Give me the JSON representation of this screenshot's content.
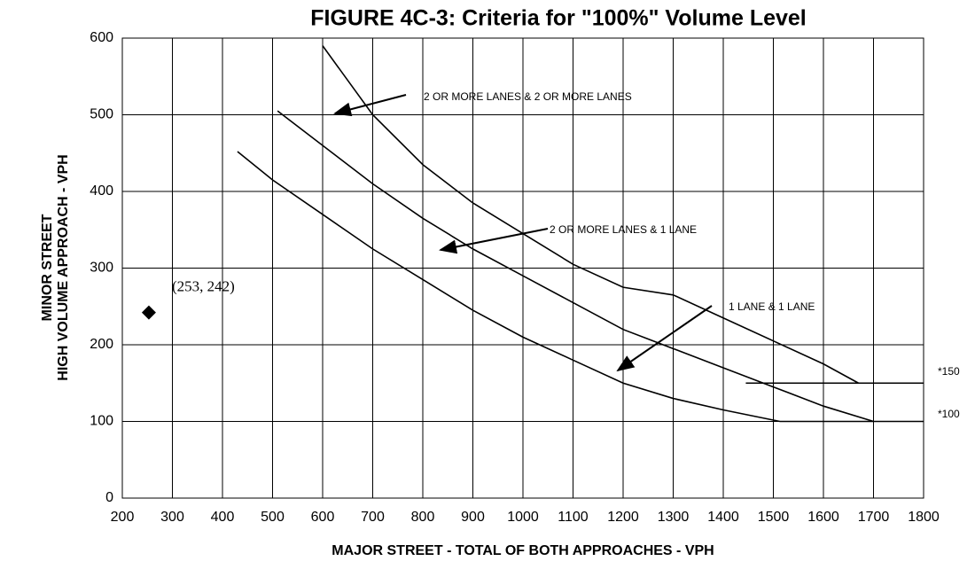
{
  "chart_data": {
    "type": "line",
    "title": "FIGURE 4C-3:  Criteria for \"100%\" Volume Level",
    "ylabel": [
      "MINOR STREET",
      "HIGH VOLUME APPROACH - VPH"
    ],
    "xlabel": "MAJOR STREET - TOTAL OF BOTH APPROACHES - VPH",
    "xlim": [
      200,
      1800
    ],
    "ylim": [
      0,
      600
    ],
    "xticks": [
      200,
      300,
      400,
      500,
      600,
      700,
      800,
      900,
      1000,
      1100,
      1200,
      1300,
      1400,
      1500,
      1600,
      1700,
      1800
    ],
    "yticks": [
      0,
      100,
      200,
      300,
      400,
      500,
      600
    ],
    "grid": true,
    "series": [
      {
        "name": "2 OR MORE LANES & 2 OR MORE LANES",
        "color": "#000000",
        "x": [
          600,
          700,
          800,
          900,
          1000,
          1100,
          1200,
          1300,
          1400,
          1500,
          1600,
          1670
        ],
        "values": [
          590,
          500,
          435,
          385,
          345,
          305,
          275,
          265,
          235,
          205,
          175,
          150
        ]
      },
      {
        "name": "2 OR MORE LANES & 1 LANE",
        "color": "#000000",
        "x": [
          510,
          600,
          700,
          800,
          900,
          1000,
          1100,
          1200,
          1300,
          1400,
          1500,
          1600,
          1700
        ],
        "values": [
          505,
          460,
          410,
          365,
          325,
          290,
          255,
          220,
          195,
          170,
          145,
          120,
          100
        ]
      },
      {
        "name": "1 LANE & 1 LANE",
        "color": "#000000",
        "x": [
          430,
          500,
          600,
          700,
          800,
          900,
          1000,
          1100,
          1200,
          1300,
          1400,
          1513
        ],
        "values": [
          452,
          415,
          370,
          325,
          285,
          245,
          210,
          180,
          150,
          130,
          115,
          100
        ]
      },
      {
        "name": "*150",
        "color": "#000000",
        "x": [
          1445,
          1800
        ],
        "values": [
          150,
          150
        ]
      },
      {
        "name": "*100",
        "color": "#000000",
        "x": [
          1513,
          1800
        ],
        "values": [
          100,
          100
        ]
      }
    ],
    "points": [
      {
        "x": 253,
        "y": 242,
        "label": "(253, 242)",
        "color": "#000000"
      }
    ]
  }
}
